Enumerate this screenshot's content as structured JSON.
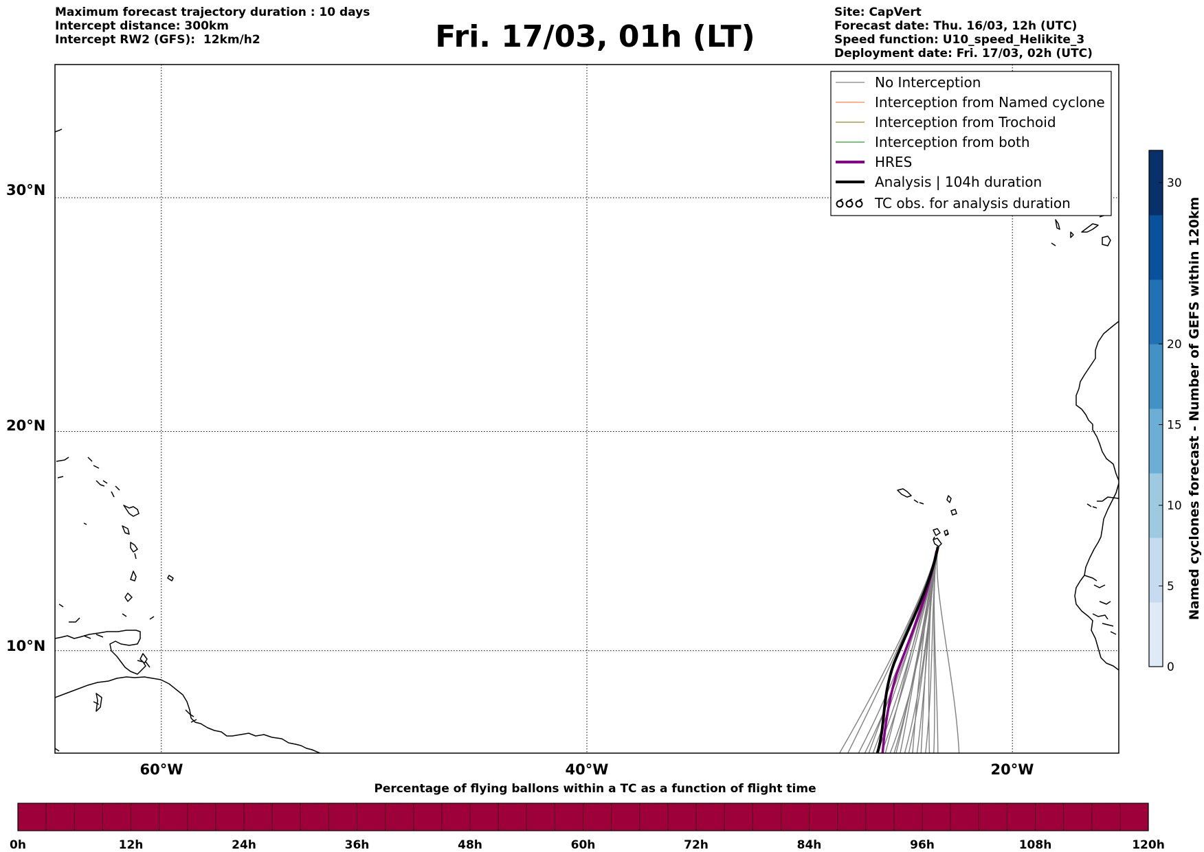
{
  "header_left": [
    "Maximum forecast trajectory duration : 10 days",
    "Intercept distance: 300km",
    "Intercept RW2 (GFS):  12km/h2"
  ],
  "title": "Fri. 17/03, 01h (LT)",
  "header_right": [
    "Site: CapVert",
    "Forecast date: Thu. 16/03, 12h (UTC)",
    "Speed function: U10_speed_Helikite_3",
    "Deployment date: Fri. 17/03, 02h (UTC)"
  ],
  "map": {
    "lat_labels": [
      {
        "text": "30°N",
        "lat": 30
      },
      {
        "text": "20°N",
        "lat": 20
      },
      {
        "text": "10°N",
        "lat": 10
      }
    ],
    "lon_labels": [
      {
        "text": "60°W",
        "lon": -60
      },
      {
        "text": "40°W",
        "lon": -40
      },
      {
        "text": "20°W",
        "lon": -20
      }
    ],
    "extent": {
      "lon_min": -65,
      "lon_max": -15,
      "lat_min": 5.2,
      "lat_max": 35.3
    },
    "site": {
      "name": "CapVert",
      "lon": -23.5,
      "lat": 14.8
    },
    "trajectory_colors": {
      "no_interception": "#808080",
      "named_cyclone": "#ff7f50",
      "trochoid": "#9b8b2a",
      "both": "#2ca02c",
      "hres": "#8b008b",
      "analysis": "#000000"
    }
  },
  "legend": {
    "items": [
      {
        "label": "No Interception",
        "color": "#808080",
        "width": 1.3,
        "kind": "line"
      },
      {
        "label": "Interception from Named cyclone",
        "color": "#ff7f50",
        "width": 1.3,
        "kind": "line"
      },
      {
        "label": "Interception from Trochoid",
        "color": "#9b8b2a",
        "width": 1.3,
        "kind": "line"
      },
      {
        "label": "Interception from both",
        "color": "#2ca02c",
        "width": 1.3,
        "kind": "line"
      },
      {
        "label": "HRES",
        "color": "#8b008b",
        "width": 4,
        "kind": "line"
      },
      {
        "label": "Analysis | 104h duration",
        "color": "#000000",
        "width": 4,
        "kind": "line"
      },
      {
        "label": "TC obs. for analysis duration",
        "color": "#000000",
        "width": 1,
        "kind": "symbol"
      }
    ]
  },
  "colorbar": {
    "title": "Named cyclones forecast - Number of GEFS within 120km",
    "min": 0,
    "max": 32,
    "ticks": [
      "0",
      "5",
      "10",
      "15",
      "20",
      "30"
    ],
    "tick_values": [
      0,
      5,
      10,
      15,
      20,
      30
    ],
    "colors": [
      "#deebf7",
      "#c6dbef",
      "#9ecae1",
      "#6baed6",
      "#4292c6",
      "#2171b5",
      "#08519c",
      "#08306b"
    ]
  },
  "bottom_bar": {
    "title": "Percentage of flying ballons within a TC as a function of flight time",
    "fill_color": "#9e003a",
    "ticks": [
      "0h",
      "12h",
      "24h",
      "36h",
      "48h",
      "60h",
      "72h",
      "84h",
      "96h",
      "108h",
      "120h"
    ],
    "tick_hours": [
      0,
      12,
      24,
      36,
      48,
      60,
      72,
      84,
      96,
      108,
      120
    ],
    "hours_max": 120,
    "percent_in_tc": 100
  }
}
